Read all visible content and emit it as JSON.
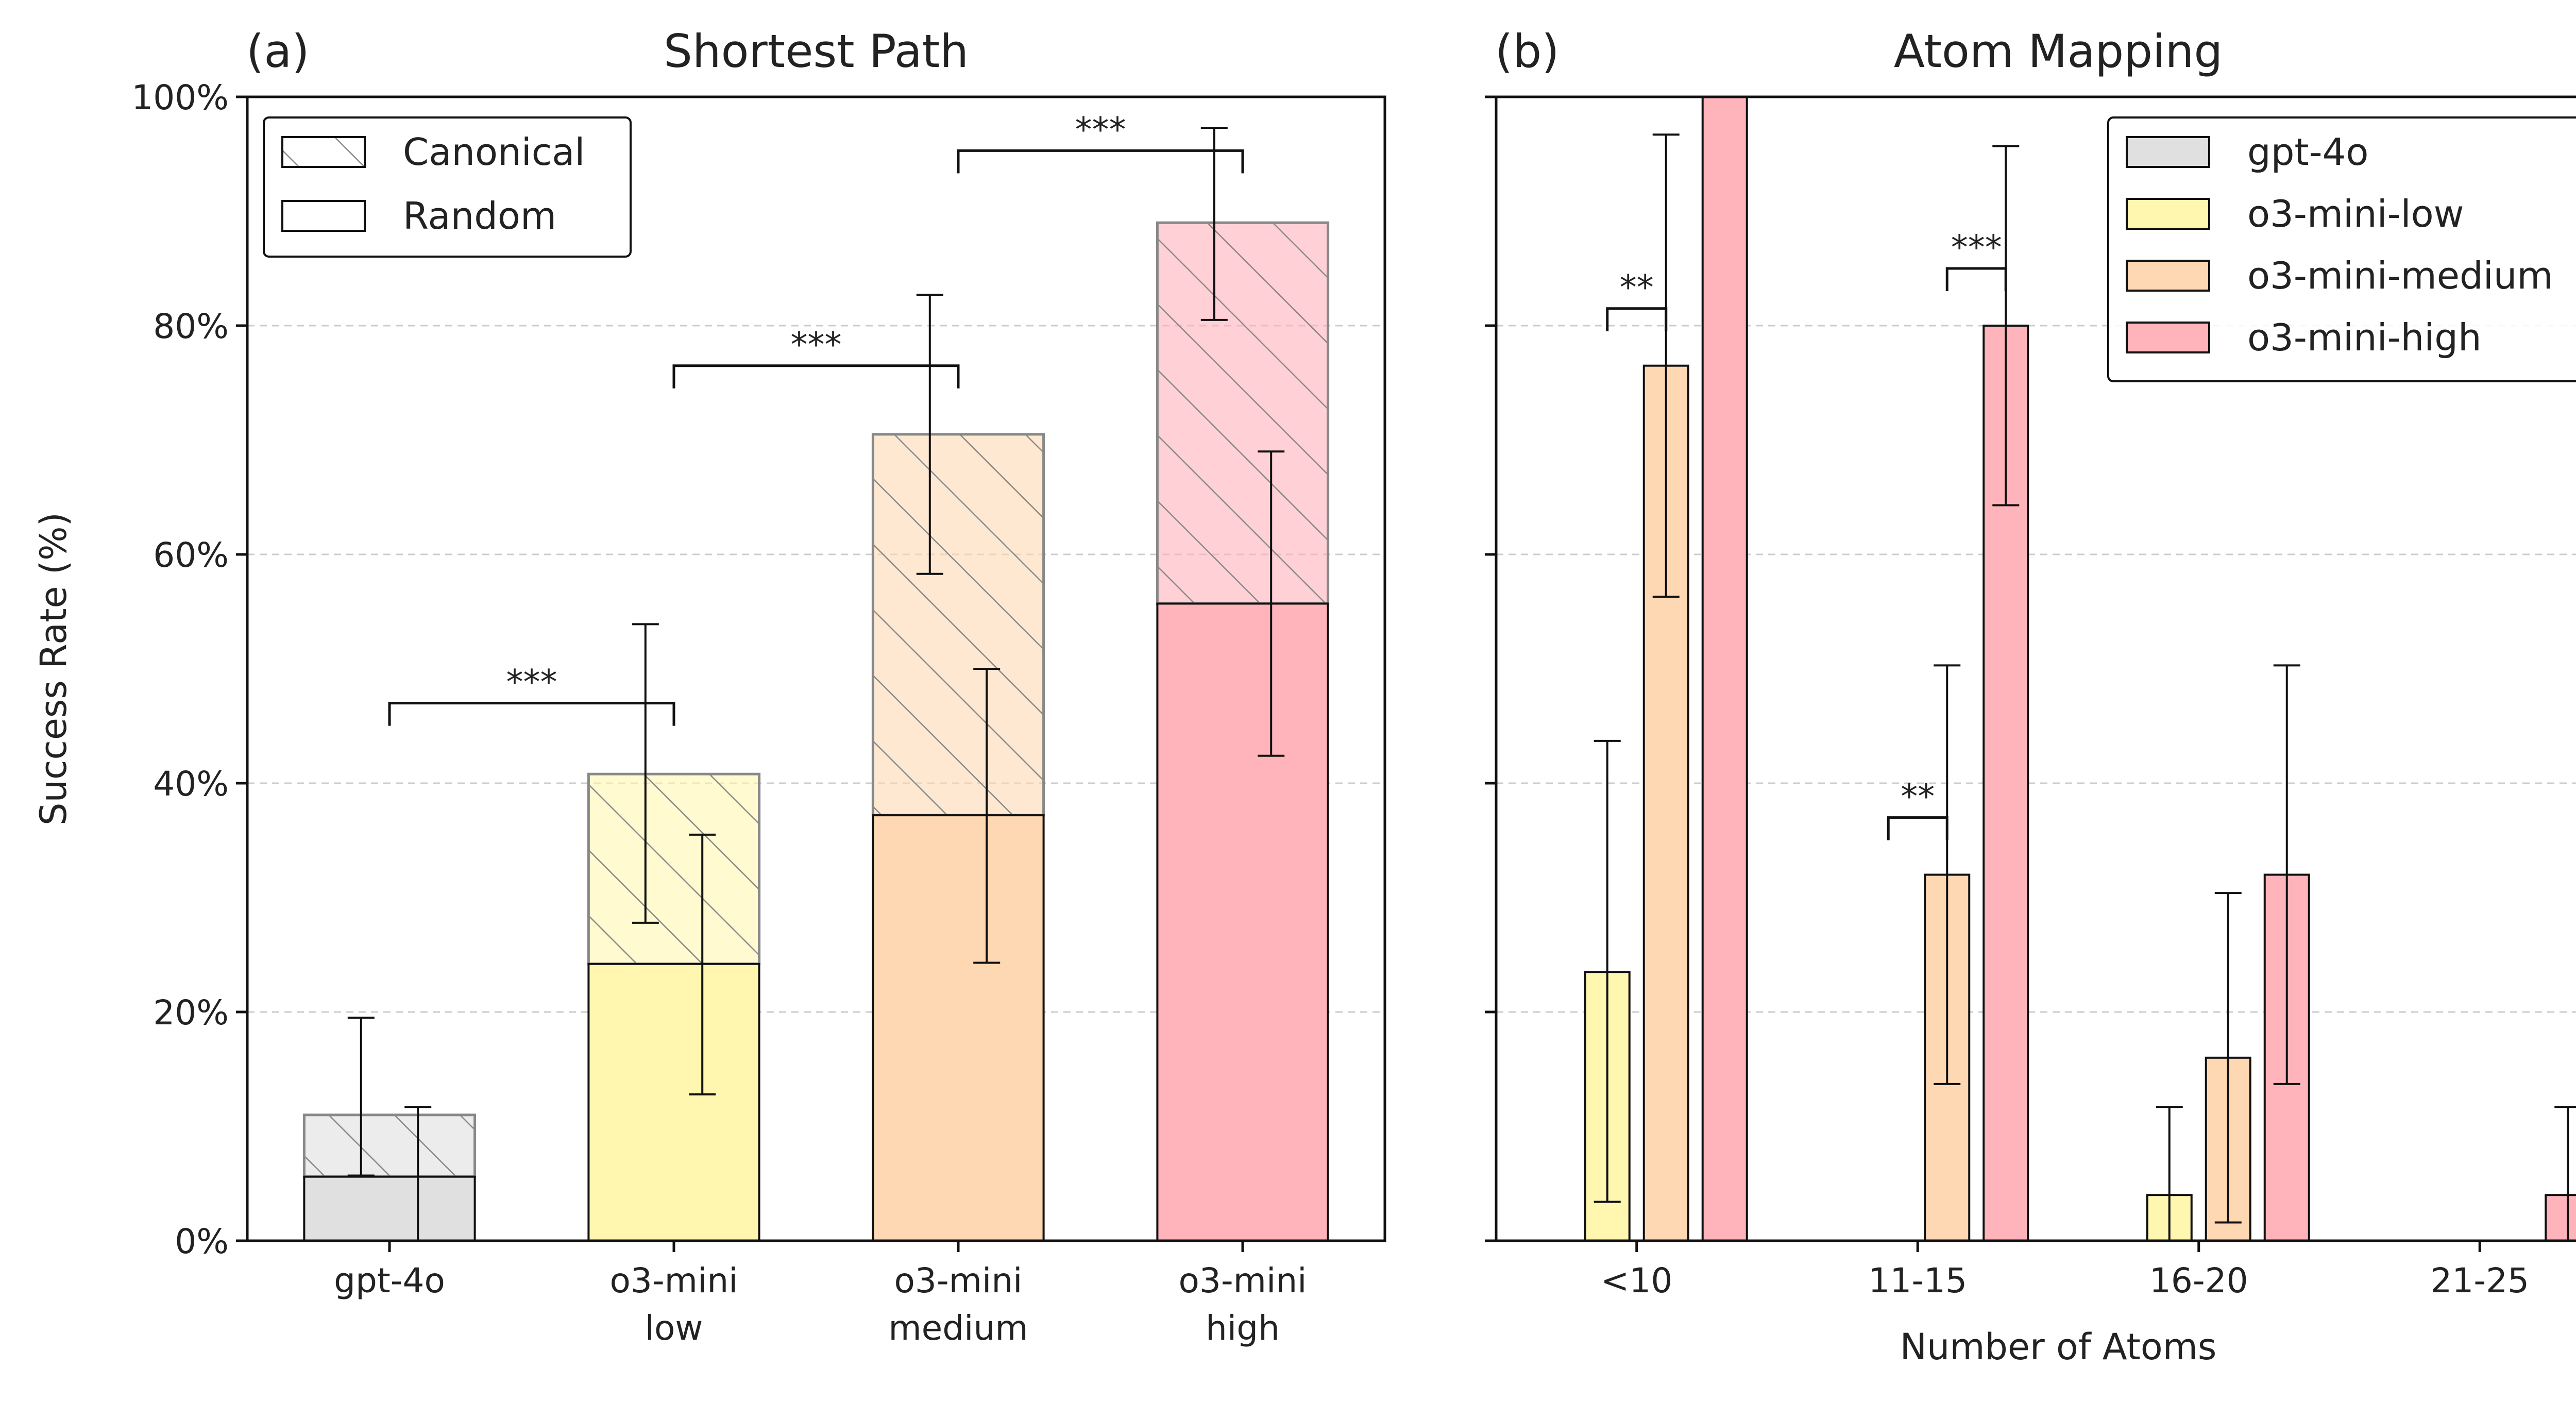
{
  "colors": {
    "gpt-4o": "#e0e0e0",
    "o3-mini-low": "#fff6b0",
    "o3-mini-medium": "#fdd8b2",
    "o3-mini-high": "#ffb3ba",
    "hatch": "#888888",
    "grid": "#cccccc",
    "edge": "#111111"
  },
  "chart_data": [
    {
      "type": "bar",
      "panel_tag": "(a)",
      "title": "Shortest Path",
      "ylabel": "Success Rate (%)",
      "xlabel": "",
      "ylim": [
        0,
        100
      ],
      "yticks": [
        "0%",
        "20%",
        "40%",
        "60%",
        "80%",
        "100%"
      ],
      "grid": "horizontal dashed",
      "categories": [
        [
          "gpt-4o"
        ],
        [
          "o3-mini",
          "low"
        ],
        [
          "o3-mini",
          "medium"
        ],
        [
          "o3-mini",
          "high"
        ]
      ],
      "color_keys": [
        "gpt-4o",
        "o3-mini-low",
        "o3-mini-medium",
        "o3-mini-high"
      ],
      "series": [
        {
          "name": "Canonical",
          "values": [
            11.0,
            40.8,
            70.5,
            89.0
          ],
          "err_low": [
            5.7,
            27.8,
            58.3,
            80.5
          ],
          "err_high": [
            19.5,
            53.9,
            82.7,
            97.3
          ]
        },
        {
          "name": "Random",
          "values": [
            5.6,
            24.2,
            37.2,
            55.7
          ],
          "err_low": [
            0.0,
            12.8,
            24.3,
            42.4
          ],
          "err_high": [
            11.7,
            35.5,
            50.0,
            69.0
          ]
        }
      ],
      "legend": {
        "placement": "top-left",
        "entries": [
          "Canonical",
          "Random"
        ]
      },
      "significance": [
        {
          "from": 0,
          "to": 1,
          "level": 47.0,
          "label": "***"
        },
        {
          "from": 1,
          "to": 2,
          "level": 76.5,
          "label": "***"
        },
        {
          "from": 2,
          "to": 3,
          "level": 95.3,
          "label": "***"
        }
      ]
    },
    {
      "type": "bar",
      "panel_tag": "(b)",
      "title": "Atom Mapping",
      "xlabel": "Number of Atoms",
      "ylabel": "",
      "ylim": [
        0,
        100
      ],
      "grid": "horizontal dashed",
      "categories": [
        "<10",
        "11-15",
        "16-20",
        "21-25"
      ],
      "series": [
        {
          "name": "gpt-4o",
          "values": [
            0,
            0,
            0,
            0
          ],
          "err_low": [
            null,
            null,
            null,
            null
          ],
          "err_high": [
            null,
            null,
            null,
            null
          ]
        },
        {
          "name": "o3-mini-low",
          "values": [
            23.5,
            0,
            4.0,
            0
          ],
          "err_low": [
            3.4,
            null,
            0.0,
            null
          ],
          "err_high": [
            43.7,
            null,
            11.7,
            null
          ]
        },
        {
          "name": "o3-mini-medium",
          "values": [
            76.5,
            32.0,
            16.0,
            0
          ],
          "err_low": [
            56.3,
            13.7,
            1.6,
            null
          ],
          "err_high": [
            96.7,
            50.3,
            30.4,
            null
          ]
        },
        {
          "name": "o3-mini-high",
          "values": [
            100.0,
            80.0,
            32.0,
            4.0
          ],
          "err_low": [
            null,
            64.3,
            13.7,
            0.0
          ],
          "err_high": [
            null,
            95.7,
            50.3,
            11.7
          ]
        }
      ],
      "legend": {
        "placement": "top-right",
        "entries": [
          "gpt-4o",
          "o3-mini-low",
          "o3-mini-medium",
          "o3-mini-high"
        ]
      },
      "significance": [
        {
          "category": 0,
          "from_series": 1,
          "to_series": 2,
          "level": 81.5,
          "label": "**"
        },
        {
          "category": 1,
          "from_series": 1,
          "to_series": 2,
          "level": 37.0,
          "label": "**"
        },
        {
          "category": 1,
          "from_series": 2,
          "to_series": 3,
          "level": 85.0,
          "label": "***"
        }
      ]
    }
  ]
}
